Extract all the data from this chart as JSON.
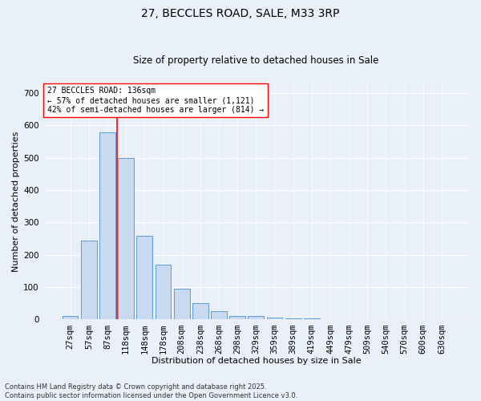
{
  "title1": "27, BECCLES ROAD, SALE, M33 3RP",
  "title2": "Size of property relative to detached houses in Sale",
  "xlabel": "Distribution of detached houses by size in Sale",
  "ylabel": "Number of detached properties",
  "bar_color": "#c9d9f0",
  "bar_edge_color": "#5b9bd5",
  "bar_values": [
    12,
    245,
    580,
    500,
    260,
    170,
    95,
    50,
    27,
    12,
    10,
    5,
    3,
    4,
    0,
    0,
    0,
    0,
    0,
    0,
    0
  ],
  "bar_labels": [
    "27sqm",
    "57sqm",
    "87sqm",
    "118sqm",
    "148sqm",
    "178sqm",
    "208sqm",
    "238sqm",
    "268sqm",
    "298sqm",
    "329sqm",
    "359sqm",
    "389sqm",
    "419sqm",
    "449sqm",
    "479sqm",
    "509sqm",
    "540sqm",
    "570sqm",
    "600sqm",
    "630sqm"
  ],
  "ylim": [
    0,
    730
  ],
  "yticks": [
    0,
    100,
    200,
    300,
    400,
    500,
    600,
    700
  ],
  "red_line_x": 3.5,
  "annotation_line1": "27 BECCLES ROAD: 136sqm",
  "annotation_line2": "← 57% of detached houses are smaller (1,121)",
  "annotation_line3": "42% of semi-detached houses are larger (814) →",
  "footnote1": "Contains HM Land Registry data © Crown copyright and database right 2025.",
  "footnote2": "Contains public sector information licensed under the Open Government Licence v3.0.",
  "bg_color": "#eaf0f8",
  "plot_bg_color": "#eaf0f8",
  "title_fontsize": 10,
  "subtitle_fontsize": 8.5,
  "ylabel_fontsize": 8,
  "xlabel_fontsize": 8,
  "tick_fontsize": 7.5,
  "annotation_fontsize": 7,
  "footnote_fontsize": 6
}
